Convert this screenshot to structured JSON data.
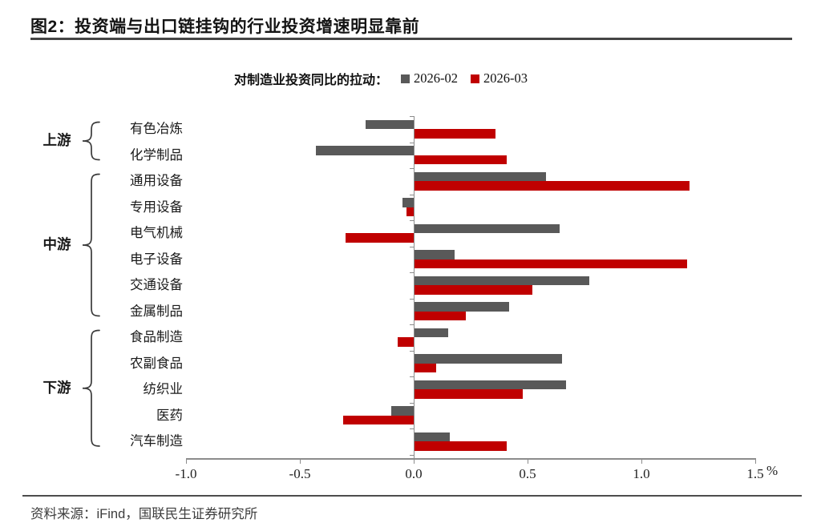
{
  "page": {
    "title": "图2：投资端与出口链挂钩的行业投资增速明显靠前",
    "source": "资料来源：iFind，国联民生证券研究所"
  },
  "legend": {
    "caption": "对制造业投资同比的拉动：",
    "series": [
      {
        "label": "2026-02",
        "color": "#595959"
      },
      {
        "label": "2026-03",
        "color": "#c00000"
      }
    ]
  },
  "chart_data": {
    "type": "bar",
    "orientation": "horizontal",
    "title": "对制造业投资同比的拉动",
    "xlabel": "%",
    "xlim": [
      -1.0,
      1.5
    ],
    "x_ticks": [
      -1.0,
      -0.5,
      0.0,
      0.5,
      1.0,
      1.5
    ],
    "x_tick_labels": [
      "-1.0",
      "-0.5",
      "0.0",
      "0.5",
      "1.0",
      "1.5"
    ],
    "grid": false,
    "legend_position": "top",
    "categories": [
      "有色冶炼",
      "化学制品",
      "通用设备",
      "专用设备",
      "电气机械",
      "电子设备",
      "交通设备",
      "金属制品",
      "食品制造",
      "农副食品",
      "纺织业",
      "医药",
      "汽车制造"
    ],
    "groups": [
      {
        "label": "上游",
        "rows": [
          0,
          1
        ]
      },
      {
        "label": "中游",
        "rows": [
          2,
          7
        ]
      },
      {
        "label": "下游",
        "rows": [
          8,
          12
        ]
      }
    ],
    "series": [
      {
        "name": "2026-02",
        "color": "#595959",
        "values": [
          -0.21,
          -0.43,
          0.58,
          -0.05,
          0.64,
          0.18,
          0.77,
          0.42,
          0.15,
          0.65,
          0.67,
          -0.1,
          0.16
        ]
      },
      {
        "name": "2026-03",
        "color": "#c00000",
        "values": [
          0.36,
          0.41,
          1.21,
          -0.03,
          -0.3,
          1.2,
          0.52,
          0.23,
          -0.07,
          0.1,
          0.48,
          -0.31,
          0.41
        ]
      }
    ]
  }
}
